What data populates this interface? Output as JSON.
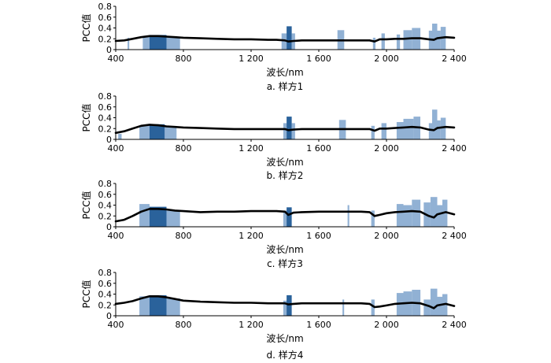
{
  "chart_data": [
    {
      "type": "line",
      "caption": "a.  样方1",
      "ylabel": "PCC值",
      "xlabel": "波长/nm",
      "xlim": [
        400,
        2400
      ],
      "ylim": [
        0,
        0.8
      ],
      "xticks": [
        400,
        800,
        1200,
        1600,
        2000,
        2400
      ],
      "xtick_labels": [
        "400",
        "800",
        "1 200",
        "1 600",
        "2 000",
        "2 400"
      ],
      "yticks": [
        0,
        0.2,
        0.4,
        0.6,
        0.8
      ],
      "ytick_labels": [
        "0",
        "0.2",
        "0.4",
        "0.6",
        "0.8"
      ],
      "line": {
        "x": [
          400,
          450,
          500,
          550,
          600,
          650,
          700,
          750,
          800,
          900,
          1000,
          1100,
          1200,
          1300,
          1350,
          1400,
          1420,
          1450,
          1500,
          1600,
          1700,
          1800,
          1850,
          1900,
          1930,
          1960,
          2000,
          2050,
          2100,
          2150,
          2200,
          2250,
          2280,
          2300,
          2350,
          2400
        ],
        "y": [
          0.16,
          0.17,
          0.2,
          0.23,
          0.25,
          0.25,
          0.24,
          0.23,
          0.22,
          0.21,
          0.2,
          0.19,
          0.19,
          0.18,
          0.18,
          0.17,
          0.15,
          0.16,
          0.17,
          0.17,
          0.17,
          0.17,
          0.17,
          0.17,
          0.15,
          0.19,
          0.19,
          0.2,
          0.2,
          0.21,
          0.21,
          0.19,
          0.18,
          0.21,
          0.23,
          0.22
        ]
      },
      "bands": [
        {
          "x": [
            470,
            480
          ],
          "y": 0.22,
          "shade": "light"
        },
        {
          "x": [
            560,
            600
          ],
          "y": 0.25,
          "shade": "light"
        },
        {
          "x": [
            600,
            700
          ],
          "y": 0.27,
          "shade": "dark"
        },
        {
          "x": [
            700,
            780
          ],
          "y": 0.24,
          "shade": "light"
        },
        {
          "x": [
            1380,
            1410
          ],
          "y": 0.3,
          "shade": "light"
        },
        {
          "x": [
            1410,
            1440
          ],
          "y": 0.43,
          "shade": "dark"
        },
        {
          "x": [
            1440,
            1460
          ],
          "y": 0.3,
          "shade": "light"
        },
        {
          "x": [
            1710,
            1750
          ],
          "y": 0.36,
          "shade": "light"
        },
        {
          "x": [
            1920,
            1935
          ],
          "y": 0.22,
          "shade": "light"
        },
        {
          "x": [
            1970,
            1990
          ],
          "y": 0.3,
          "shade": "light"
        },
        {
          "x": [
            2060,
            2080
          ],
          "y": 0.28,
          "shade": "light"
        },
        {
          "x": [
            2100,
            2150
          ],
          "y": 0.36,
          "shade": "light"
        },
        {
          "x": [
            2150,
            2200
          ],
          "y": 0.4,
          "shade": "light"
        },
        {
          "x": [
            2250,
            2270
          ],
          "y": 0.35,
          "shade": "light"
        },
        {
          "x": [
            2270,
            2300
          ],
          "y": 0.48,
          "shade": "light"
        },
        {
          "x": [
            2300,
            2320
          ],
          "y": 0.35,
          "shade": "light"
        },
        {
          "x": [
            2320,
            2350
          ],
          "y": 0.42,
          "shade": "light"
        }
      ]
    },
    {
      "type": "line",
      "caption": "b.  样方2",
      "ylabel": "PCC值",
      "xlabel": "波长/nm",
      "xlim": [
        400,
        2400
      ],
      "ylim": [
        0,
        0.8
      ],
      "xticks": [
        400,
        800,
        1200,
        1600,
        2000,
        2400
      ],
      "xtick_labels": [
        "400",
        "800",
        "1 200",
        "1 600",
        "2 000",
        "2 400"
      ],
      "yticks": [
        0,
        0.2,
        0.4,
        0.6,
        0.8
      ],
      "ytick_labels": [
        "0",
        "0.2",
        "0.4",
        "0.6",
        "0.8"
      ],
      "line": {
        "x": [
          400,
          450,
          500,
          550,
          600,
          650,
          700,
          750,
          800,
          900,
          1000,
          1100,
          1200,
          1300,
          1350,
          1400,
          1420,
          1450,
          1500,
          1600,
          1700,
          1800,
          1850,
          1900,
          1930,
          1960,
          2000,
          2050,
          2100,
          2150,
          2200,
          2250,
          2280,
          2300,
          2350,
          2400
        ],
        "y": [
          0.12,
          0.15,
          0.2,
          0.25,
          0.27,
          0.26,
          0.24,
          0.23,
          0.22,
          0.21,
          0.2,
          0.19,
          0.19,
          0.19,
          0.19,
          0.19,
          0.17,
          0.18,
          0.19,
          0.19,
          0.19,
          0.19,
          0.19,
          0.19,
          0.16,
          0.2,
          0.2,
          0.21,
          0.22,
          0.23,
          0.22,
          0.18,
          0.17,
          0.21,
          0.23,
          0.22
        ]
      },
      "bands": [
        {
          "x": [
            415,
            435
          ],
          "y": 0.1,
          "shade": "light"
        },
        {
          "x": [
            540,
            600
          ],
          "y": 0.25,
          "shade": "light"
        },
        {
          "x": [
            600,
            690
          ],
          "y": 0.28,
          "shade": "dark"
        },
        {
          "x": [
            690,
            760
          ],
          "y": 0.24,
          "shade": "light"
        },
        {
          "x": [
            1390,
            1410
          ],
          "y": 0.3,
          "shade": "light"
        },
        {
          "x": [
            1410,
            1440
          ],
          "y": 0.42,
          "shade": "dark"
        },
        {
          "x": [
            1440,
            1460
          ],
          "y": 0.3,
          "shade": "light"
        },
        {
          "x": [
            1720,
            1760
          ],
          "y": 0.36,
          "shade": "light"
        },
        {
          "x": [
            1910,
            1930
          ],
          "y": 0.25,
          "shade": "light"
        },
        {
          "x": [
            1970,
            2000
          ],
          "y": 0.3,
          "shade": "light"
        },
        {
          "x": [
            2060,
            2100
          ],
          "y": 0.32,
          "shade": "light"
        },
        {
          "x": [
            2100,
            2160
          ],
          "y": 0.38,
          "shade": "light"
        },
        {
          "x": [
            2160,
            2200
          ],
          "y": 0.42,
          "shade": "light"
        },
        {
          "x": [
            2250,
            2270
          ],
          "y": 0.3,
          "shade": "light"
        },
        {
          "x": [
            2270,
            2300
          ],
          "y": 0.55,
          "shade": "light"
        },
        {
          "x": [
            2300,
            2320
          ],
          "y": 0.35,
          "shade": "light"
        },
        {
          "x": [
            2320,
            2350
          ],
          "y": 0.4,
          "shade": "light"
        }
      ]
    },
    {
      "type": "line",
      "caption": "c.  样方3",
      "ylabel": "PCC值",
      "xlabel": "波长/nm",
      "xlim": [
        400,
        2400
      ],
      "ylim": [
        0,
        0.8
      ],
      "xticks": [
        400,
        800,
        1200,
        1600,
        2000,
        2400
      ],
      "xtick_labels": [
        "400",
        "800",
        "1 200",
        "1 600",
        "2 000",
        "2 400"
      ],
      "yticks": [
        0,
        0.2,
        0.4,
        0.6,
        0.8
      ],
      "ytick_labels": [
        "0",
        "0.2",
        "0.4",
        "0.6",
        "0.8"
      ],
      "line": {
        "x": [
          400,
          450,
          500,
          550,
          600,
          650,
          700,
          750,
          800,
          900,
          1000,
          1100,
          1200,
          1300,
          1350,
          1400,
          1420,
          1450,
          1500,
          1600,
          1700,
          1800,
          1850,
          1900,
          1930,
          1960,
          2000,
          2050,
          2100,
          2150,
          2200,
          2250,
          2280,
          2300,
          2350,
          2400
        ],
        "y": [
          0.1,
          0.13,
          0.2,
          0.28,
          0.33,
          0.33,
          0.32,
          0.3,
          0.29,
          0.27,
          0.28,
          0.28,
          0.29,
          0.29,
          0.29,
          0.28,
          0.22,
          0.26,
          0.27,
          0.28,
          0.28,
          0.28,
          0.28,
          0.27,
          0.2,
          0.22,
          0.25,
          0.27,
          0.28,
          0.29,
          0.28,
          0.2,
          0.17,
          0.23,
          0.27,
          0.23
        ]
      },
      "bands": [
        {
          "x": [
            540,
            600
          ],
          "y": 0.42,
          "shade": "light"
        },
        {
          "x": [
            600,
            700
          ],
          "y": 0.37,
          "shade": "dark"
        },
        {
          "x": [
            700,
            780
          ],
          "y": 0.3,
          "shade": "light"
        },
        {
          "x": [
            1390,
            1410
          ],
          "y": 0.3,
          "shade": "light"
        },
        {
          "x": [
            1410,
            1440
          ],
          "y": 0.36,
          "shade": "dark"
        },
        {
          "x": [
            1770,
            1780
          ],
          "y": 0.4,
          "shade": "light"
        },
        {
          "x": [
            1910,
            1930
          ],
          "y": 0.3,
          "shade": "light"
        },
        {
          "x": [
            2060,
            2100
          ],
          "y": 0.42,
          "shade": "light"
        },
        {
          "x": [
            2100,
            2150
          ],
          "y": 0.4,
          "shade": "light"
        },
        {
          "x": [
            2150,
            2200
          ],
          "y": 0.5,
          "shade": "light"
        },
        {
          "x": [
            2220,
            2260
          ],
          "y": 0.45,
          "shade": "light"
        },
        {
          "x": [
            2260,
            2300
          ],
          "y": 0.55,
          "shade": "light"
        },
        {
          "x": [
            2300,
            2330
          ],
          "y": 0.4,
          "shade": "light"
        },
        {
          "x": [
            2330,
            2360
          ],
          "y": 0.5,
          "shade": "light"
        }
      ]
    },
    {
      "type": "line",
      "caption": "d.  样方4",
      "ylabel": "PCC值",
      "xlabel": "波长/nm",
      "xlim": [
        400,
        2400
      ],
      "ylim": [
        0,
        0.8
      ],
      "xticks": [
        400,
        800,
        1200,
        1600,
        2000,
        2400
      ],
      "xtick_labels": [
        "400",
        "800",
        "1 200",
        "1 600",
        "2 000",
        "2 400"
      ],
      "yticks": [
        0,
        0.2,
        0.4,
        0.6,
        0.8
      ],
      "ytick_labels": [
        "0",
        "0.2",
        "0.4",
        "0.6",
        "0.8"
      ],
      "line": {
        "x": [
          400,
          450,
          500,
          550,
          600,
          650,
          700,
          750,
          800,
          900,
          1000,
          1100,
          1200,
          1300,
          1350,
          1400,
          1420,
          1450,
          1500,
          1600,
          1700,
          1800,
          1850,
          1900,
          1930,
          1960,
          2000,
          2050,
          2100,
          2150,
          2200,
          2250,
          2280,
          2300,
          2350,
          2400
        ],
        "y": [
          0.22,
          0.24,
          0.27,
          0.32,
          0.36,
          0.36,
          0.34,
          0.31,
          0.28,
          0.26,
          0.25,
          0.24,
          0.24,
          0.23,
          0.23,
          0.23,
          0.21,
          0.22,
          0.23,
          0.23,
          0.23,
          0.23,
          0.23,
          0.22,
          0.16,
          0.17,
          0.19,
          0.22,
          0.23,
          0.24,
          0.23,
          0.18,
          0.14,
          0.19,
          0.22,
          0.18
        ]
      },
      "bands": [
        {
          "x": [
            540,
            600
          ],
          "y": 0.36,
          "shade": "light"
        },
        {
          "x": [
            600,
            700
          ],
          "y": 0.38,
          "shade": "dark"
        },
        {
          "x": [
            700,
            780
          ],
          "y": 0.32,
          "shade": "light"
        },
        {
          "x": [
            1390,
            1410
          ],
          "y": 0.28,
          "shade": "light"
        },
        {
          "x": [
            1410,
            1440
          ],
          "y": 0.38,
          "shade": "dark"
        },
        {
          "x": [
            1740,
            1750
          ],
          "y": 0.3,
          "shade": "light"
        },
        {
          "x": [
            1910,
            1930
          ],
          "y": 0.3,
          "shade": "light"
        },
        {
          "x": [
            2060,
            2100
          ],
          "y": 0.42,
          "shade": "light"
        },
        {
          "x": [
            2100,
            2150
          ],
          "y": 0.45,
          "shade": "light"
        },
        {
          "x": [
            2150,
            2200
          ],
          "y": 0.48,
          "shade": "light"
        },
        {
          "x": [
            2220,
            2260
          ],
          "y": 0.3,
          "shade": "light"
        },
        {
          "x": [
            2260,
            2300
          ],
          "y": 0.5,
          "shade": "light"
        },
        {
          "x": [
            2300,
            2330
          ],
          "y": 0.35,
          "shade": "light"
        },
        {
          "x": [
            2330,
            2360
          ],
          "y": 0.4,
          "shade": "light"
        }
      ]
    }
  ],
  "colors": {
    "band_light": "#7ea3cc",
    "band_dark": "#1f5a96",
    "line": "#000000",
    "axis": "#000000"
  }
}
